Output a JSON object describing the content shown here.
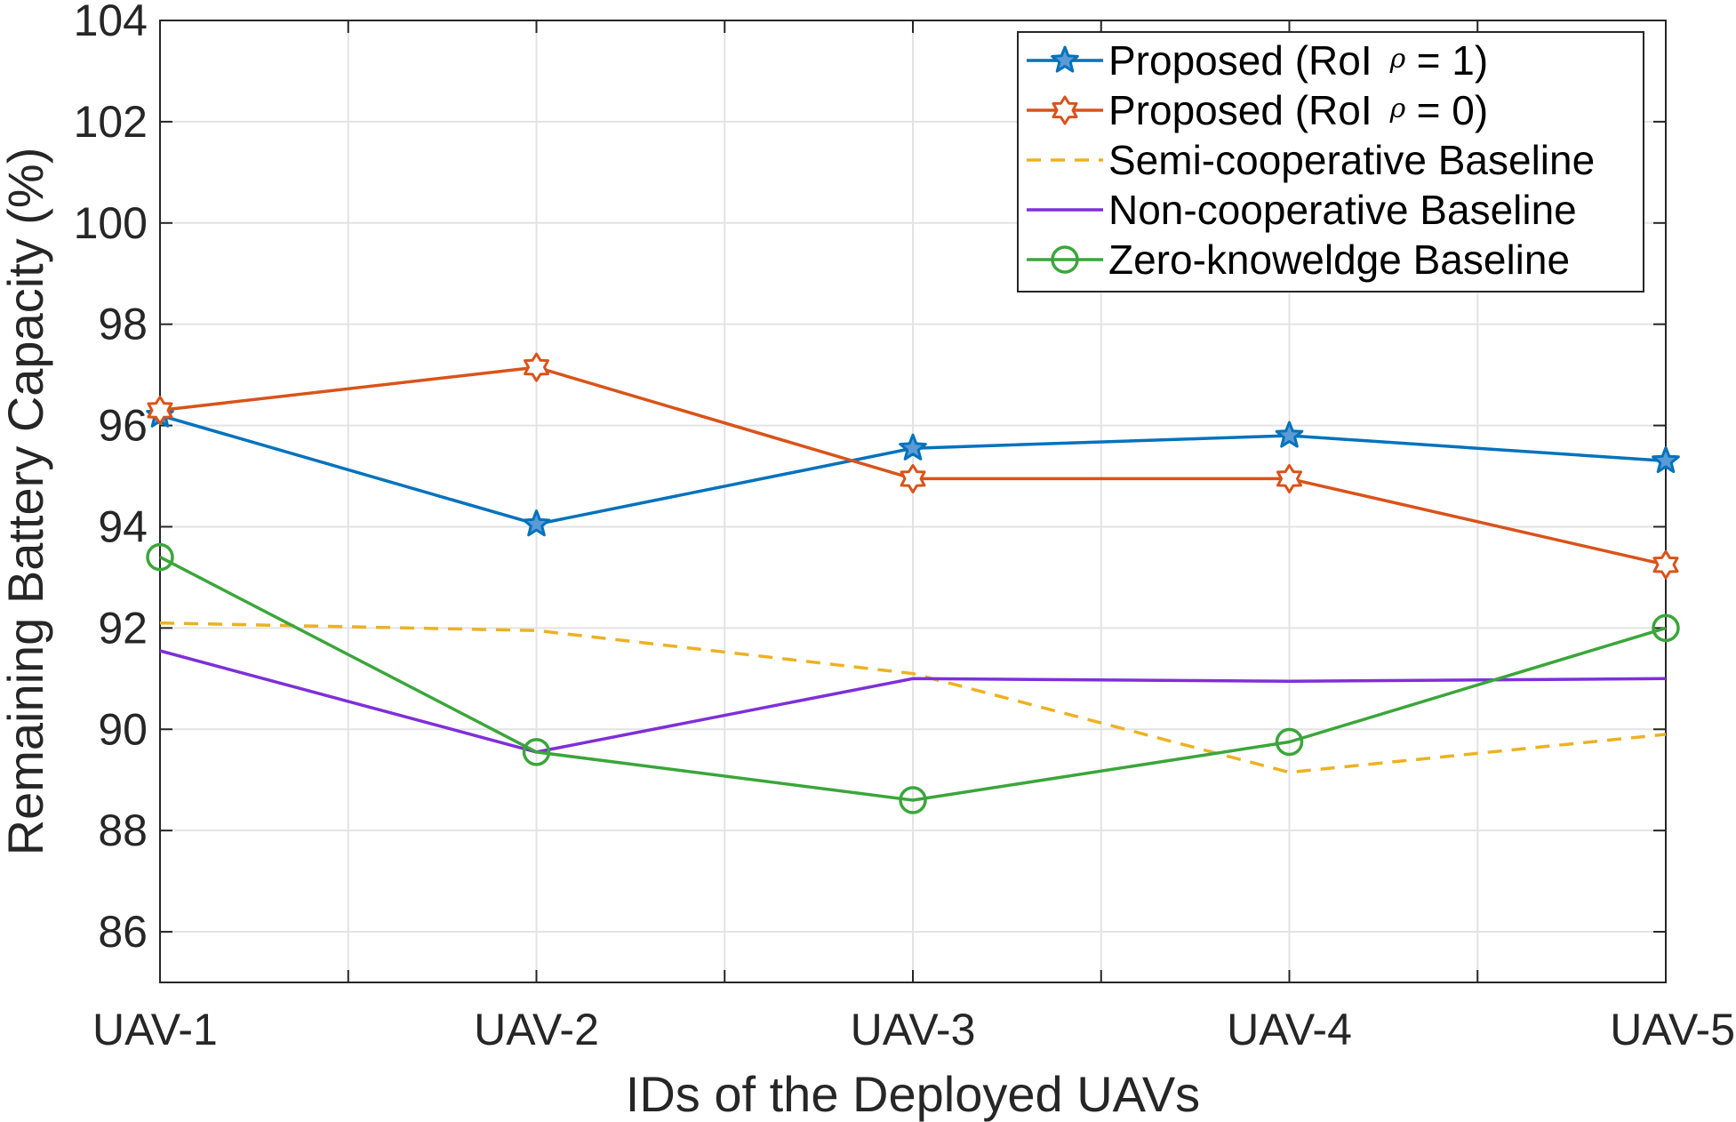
{
  "chart_data": {
    "type": "line",
    "title": "",
    "xlabel": "IDs of the Deployed UAVs",
    "ylabel": "Remaining Battery Capacity (%)",
    "categories": [
      "UAV-1",
      "UAV-2",
      "UAV-3",
      "UAV-4",
      "UAV-5"
    ],
    "ylim": [
      85,
      104
    ],
    "yticks": [
      86,
      88,
      90,
      92,
      94,
      96,
      98,
      100,
      102,
      104
    ],
    "grid": true,
    "legend_position": "top-right",
    "series": [
      {
        "name": "Proposed (RoI",
        "subscript": "ρ",
        "suffix": "= 1)",
        "values": [
          96.2,
          94.05,
          95.55,
          95.8,
          95.3
        ],
        "color": "#0072BD",
        "dash": "solid",
        "marker": "star-filled"
      },
      {
        "name": "Proposed (RoI",
        "subscript": "ρ",
        "suffix": "= 0)",
        "values": [
          96.3,
          97.15,
          94.95,
          94.95,
          93.25
        ],
        "color": "#D95319",
        "dash": "solid",
        "marker": "hexagram"
      },
      {
        "name": "Semi-cooperative Baseline",
        "values": [
          92.1,
          91.95,
          91.1,
          89.15,
          89.9
        ],
        "color": "#EDB120",
        "dash": "dashed",
        "marker": "none"
      },
      {
        "name": "Non-cooperative Baseline",
        "values": [
          91.55,
          89.55,
          91.0,
          90.95,
          91.0
        ],
        "color": "#7E2FD9",
        "dash": "solid",
        "marker": "none"
      },
      {
        "name": "Zero-knoweldge Baseline",
        "values": [
          93.4,
          89.55,
          88.6,
          89.75,
          92.0
        ],
        "color": "#3AA63A",
        "dash": "solid",
        "marker": "circle"
      }
    ]
  }
}
